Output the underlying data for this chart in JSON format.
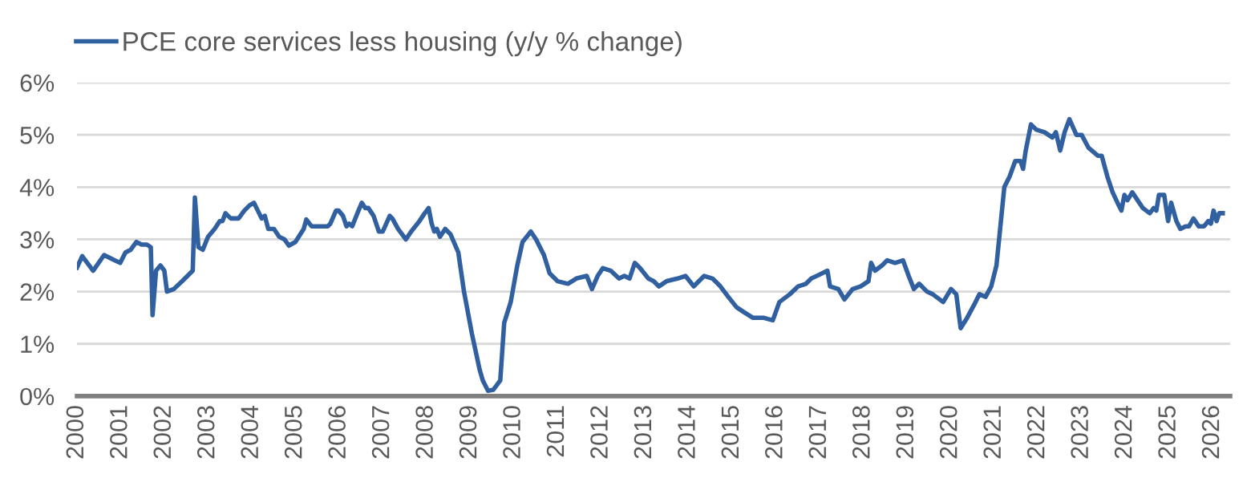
{
  "chart_data": {
    "type": "line",
    "legend": "top left",
    "grid": "y",
    "line_style": "solid",
    "xlim": [
      2000,
      2026.4
    ],
    "xticks": [
      2000,
      2001,
      2002,
      2003,
      2004,
      2005,
      2006,
      2007,
      2008,
      2009,
      2010,
      2011,
      2012,
      2013,
      2014,
      2015,
      2016,
      2017,
      2018,
      2019,
      2020,
      2021,
      2022,
      2023,
      2024,
      2025,
      2026
    ],
    "ylim": [
      0,
      6
    ],
    "yticks": [
      {
        "value": 0,
        "label": "0%"
      },
      {
        "value": 1,
        "label": "1%"
      },
      {
        "value": 2,
        "label": "2%"
      },
      {
        "value": 3,
        "label": "3%"
      },
      {
        "value": 4,
        "label": "4%"
      },
      {
        "value": 5,
        "label": "5%"
      },
      {
        "value": 6,
        "label": "6%"
      }
    ],
    "series": [
      {
        "name": "PCE core services less housing (y/y % change)",
        "color": "#30609f",
        "x": [
          2000.0,
          2000.12,
          2000.37,
          2000.62,
          2000.86,
          2000.99,
          2001.11,
          2001.23,
          2001.36,
          2001.48,
          2001.6,
          2001.69,
          2001.73,
          2001.81,
          2001.91,
          2002.0,
          2002.06,
          2002.22,
          2002.41,
          2002.53,
          2002.65,
          2002.7,
          2002.78,
          2002.88,
          2003.0,
          2003.15,
          2003.27,
          2003.33,
          2003.4,
          2003.52,
          2003.7,
          2003.83,
          2003.95,
          2004.05,
          2004.14,
          2004.23,
          2004.3,
          2004.38,
          2004.51,
          2004.63,
          2004.75,
          2004.85,
          2005.0,
          2005.19,
          2005.25,
          2005.37,
          2005.74,
          2005.8,
          2005.93,
          2005.99,
          2006.09,
          2006.17,
          2006.23,
          2006.3,
          2006.42,
          2006.52,
          2006.6,
          2006.67,
          2006.79,
          2006.91,
          2007.0,
          2007.16,
          2007.22,
          2007.35,
          2007.53,
          2007.65,
          2007.84,
          2007.96,
          2008.05,
          2008.12,
          2008.18,
          2008.24,
          2008.31,
          2008.43,
          2008.55,
          2008.73,
          2008.86,
          2009.04,
          2009.22,
          2009.29,
          2009.41,
          2009.53,
          2009.69,
          2009.78,
          2009.93,
          2010.08,
          2010.2,
          2010.39,
          2010.51,
          2010.69,
          2010.82,
          2011.0,
          2011.24,
          2011.43,
          2011.67,
          2011.79,
          2011.92,
          2012.04,
          2012.22,
          2012.41,
          2012.53,
          2012.65,
          2012.77,
          2012.89,
          2013.08,
          2013.2,
          2013.32,
          2013.5,
          2013.75,
          2013.93,
          2014.12,
          2014.36,
          2014.55,
          2014.73,
          2014.91,
          2015.1,
          2015.28,
          2015.47,
          2015.71,
          2015.93,
          2016.08,
          2016.32,
          2016.51,
          2016.69,
          2016.81,
          2017.06,
          2017.18,
          2017.24,
          2017.43,
          2017.57,
          2017.76,
          2017.94,
          2018.12,
          2018.18,
          2018.27,
          2018.43,
          2018.55,
          2018.73,
          2018.91,
          2019.04,
          2019.16,
          2019.28,
          2019.46,
          2019.59,
          2019.83,
          2020.01,
          2020.13,
          2020.23,
          2020.38,
          2020.54,
          2020.66,
          2020.8,
          2020.93,
          2021.05,
          2021.23,
          2021.35,
          2021.48,
          2021.6,
          2021.66,
          2021.72,
          2021.84,
          2021.96,
          2022.15,
          2022.33,
          2022.41,
          2022.51,
          2022.61,
          2022.72,
          2022.88,
          2023.0,
          2023.16,
          2023.37,
          2023.46,
          2023.59,
          2023.71,
          2023.85,
          2023.91,
          2023.98,
          2024.05,
          2024.16,
          2024.28,
          2024.4,
          2024.56,
          2024.65,
          2024.71,
          2024.77,
          2024.89,
          2024.98,
          2025.05,
          2025.17,
          2025.26,
          2025.38,
          2025.46,
          2025.56,
          2025.68,
          2025.8,
          2025.9,
          2025.96,
          2026.02,
          2026.09,
          2026.15,
          2026.23
        ],
        "values": [
          2.46,
          2.68,
          2.4,
          2.7,
          2.6,
          2.55,
          2.75,
          2.8,
          2.95,
          2.9,
          2.9,
          2.85,
          1.55,
          2.4,
          2.5,
          2.4,
          2.0,
          2.05,
          2.2,
          2.3,
          2.4,
          3.8,
          2.85,
          2.8,
          3.05,
          3.2,
          3.35,
          3.35,
          3.5,
          3.4,
          3.4,
          3.55,
          3.65,
          3.7,
          3.55,
          3.4,
          3.45,
          3.2,
          3.2,
          3.05,
          3.0,
          2.88,
          2.95,
          3.2,
          3.38,
          3.25,
          3.25,
          3.3,
          3.55,
          3.55,
          3.45,
          3.25,
          3.3,
          3.25,
          3.5,
          3.7,
          3.6,
          3.6,
          3.45,
          3.15,
          3.15,
          3.45,
          3.4,
          3.2,
          3.0,
          3.15,
          3.35,
          3.5,
          3.6,
          3.3,
          3.15,
          3.2,
          3.05,
          3.2,
          3.1,
          2.75,
          2.0,
          1.2,
          0.5,
          0.3,
          0.1,
          0.12,
          0.3,
          1.4,
          1.8,
          2.5,
          2.95,
          3.15,
          3.0,
          2.7,
          2.35,
          2.2,
          2.15,
          2.25,
          2.3,
          2.05,
          2.3,
          2.45,
          2.4,
          2.25,
          2.3,
          2.25,
          2.55,
          2.45,
          2.25,
          2.2,
          2.1,
          2.2,
          2.25,
          2.3,
          2.1,
          2.3,
          2.25,
          2.1,
          1.9,
          1.7,
          1.6,
          1.5,
          1.5,
          1.45,
          1.8,
          1.95,
          2.1,
          2.15,
          2.25,
          2.35,
          2.4,
          2.1,
          2.05,
          1.85,
          2.05,
          2.1,
          2.2,
          2.55,
          2.4,
          2.5,
          2.6,
          2.55,
          2.6,
          2.3,
          2.05,
          2.15,
          2.0,
          1.95,
          1.8,
          2.05,
          1.95,
          1.3,
          1.5,
          1.75,
          1.95,
          1.9,
          2.1,
          2.5,
          4.0,
          4.2,
          4.5,
          4.5,
          4.35,
          4.7,
          5.2,
          5.1,
          5.05,
          4.95,
          5.05,
          4.7,
          5.05,
          5.3,
          5.0,
          5.0,
          4.75,
          4.6,
          4.6,
          4.2,
          3.9,
          3.65,
          3.55,
          3.85,
          3.75,
          3.9,
          3.75,
          3.6,
          3.5,
          3.6,
          3.55,
          3.85,
          3.85,
          3.35,
          3.7,
          3.35,
          3.2,
          3.25,
          3.25,
          3.4,
          3.25,
          3.25,
          3.35,
          3.3,
          3.55,
          3.35,
          3.5,
          3.5
        ]
      }
    ]
  }
}
